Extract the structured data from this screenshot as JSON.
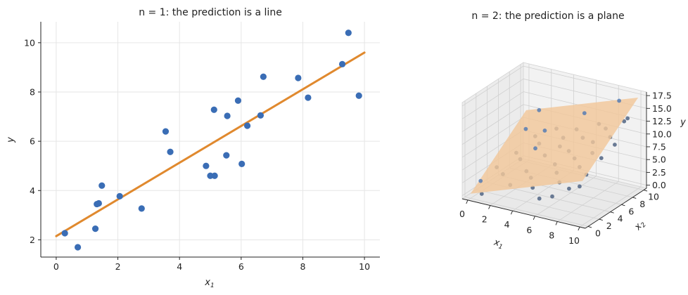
{
  "chart_data": [
    {
      "type": "scatter",
      "title": "n = 1: the prediction is a line",
      "xlabel": "x1",
      "ylabel": "y",
      "xlim": [
        -0.5,
        10.5
      ],
      "ylim": [
        1.3,
        10.85
      ],
      "xticks": [
        0,
        2,
        4,
        6,
        8,
        10
      ],
      "yticks": [
        2,
        4,
        6,
        8,
        10
      ],
      "grid": true,
      "series": [
        {
          "kind": "points",
          "color": "#3a6db5",
          "points": [
            [
              0.28,
              2.27
            ],
            [
              0.7,
              1.7
            ],
            [
              1.27,
              2.45
            ],
            [
              1.32,
              3.45
            ],
            [
              1.38,
              3.48
            ],
            [
              1.48,
              4.2
            ],
            [
              2.06,
              3.77
            ],
            [
              2.77,
              3.27
            ],
            [
              3.55,
              6.4
            ],
            [
              3.7,
              5.57
            ],
            [
              4.86,
              5.0
            ],
            [
              5.0,
              4.6
            ],
            [
              5.14,
              4.6
            ],
            [
              5.12,
              7.28
            ],
            [
              5.52,
              5.43
            ],
            [
              5.55,
              7.03
            ],
            [
              5.9,
              7.65
            ],
            [
              6.02,
              5.08
            ],
            [
              6.2,
              6.63
            ],
            [
              6.63,
              7.05
            ],
            [
              6.72,
              8.62
            ],
            [
              7.85,
              8.57
            ],
            [
              8.17,
              7.77
            ],
            [
              9.28,
              9.13
            ],
            [
              9.48,
              10.4
            ],
            [
              9.82,
              7.85
            ]
          ]
        },
        {
          "kind": "line",
          "color": "#e0892e",
          "x": [
            0,
            10
          ],
          "y": [
            2.15,
            9.6
          ]
        }
      ]
    },
    {
      "type": "scatter3d",
      "title": "n = 2: the prediction is a plane",
      "xlabel": "x1",
      "ylabel": "x2",
      "zlabel": "y",
      "xlim": [
        -0.5,
        10.5
      ],
      "ylim": [
        -0.5,
        10.5
      ],
      "zlim": [
        -0.6,
        18.2
      ],
      "xticks": [
        0,
        2,
        4,
        6,
        8,
        10
      ],
      "yticks": [
        0,
        2,
        4,
        6,
        8,
        10
      ],
      "zticks": [
        "0.0",
        "2.5",
        "5.0",
        "7.5",
        "10.0",
        "12.5",
        "15.0",
        "17.5"
      ],
      "grid": true,
      "plane_color": "#f2c79a",
      "plane_corners_z": [
        0.3,
        8.0,
        17.2,
        9.5
      ],
      "point_color": "#3a6db5",
      "points": [
        [
          0.3,
          1.2,
          2.1
        ],
        [
          0.6,
          3.5,
          3.3
        ],
        [
          1.1,
          6.0,
          4.6
        ],
        [
          1.4,
          8.8,
          6.0
        ],
        [
          1.8,
          2.2,
          3.5
        ],
        [
          2.2,
          4.5,
          5.0
        ],
        [
          2.6,
          7.1,
          6.4
        ],
        [
          3.0,
          9.4,
          7.9
        ],
        [
          3.1,
          0.9,
          3.0
        ],
        [
          3.5,
          3.0,
          4.4
        ],
        [
          3.9,
          5.5,
          5.9
        ],
        [
          4.2,
          8.2,
          7.6
        ],
        [
          4.5,
          1.8,
          4.5
        ],
        [
          4.8,
          6.4,
          7.5
        ],
        [
          5.0,
          9.0,
          9.1
        ],
        [
          5.3,
          0.5,
          3.9
        ],
        [
          5.6,
          3.9,
          6.2
        ],
        [
          5.9,
          5.8,
          7.6
        ],
        [
          6.2,
          7.7,
          9.0
        ],
        [
          6.4,
          2.6,
          5.9
        ],
        [
          6.7,
          9.6,
          10.6
        ],
        [
          7.0,
          4.6,
          7.6
        ],
        [
          7.3,
          1.3,
          5.4
        ],
        [
          7.5,
          6.9,
          9.4
        ],
        [
          7.8,
          8.6,
          11.0
        ],
        [
          8.1,
          3.3,
          7.4
        ],
        [
          8.3,
          5.2,
          8.9
        ],
        [
          8.6,
          0.4,
          5.5
        ],
        [
          8.8,
          7.4,
          10.7
        ],
        [
          9.1,
          9.3,
          12.6
        ],
        [
          9.3,
          2.1,
          7.4
        ],
        [
          9.5,
          4.4,
          9.1
        ],
        [
          9.8,
          6.2,
          10.6
        ],
        [
          2.0,
          5.9,
          9.8
        ],
        [
          4.0,
          3.6,
          8.7
        ],
        [
          6.0,
          8.4,
          13.2
        ],
        [
          8.4,
          9.8,
          15.9
        ],
        [
          9.9,
          8.3,
          14.3
        ],
        [
          1.5,
          9.3,
          10.8
        ],
        [
          3.3,
          6.7,
          9.6
        ],
        [
          6.9,
          0.8,
          2.8
        ],
        [
          8.5,
          2.5,
          4.4
        ],
        [
          0.9,
          0.2,
          0.6
        ],
        [
          5.6,
          1.1,
          1.5
        ]
      ]
    }
  ]
}
